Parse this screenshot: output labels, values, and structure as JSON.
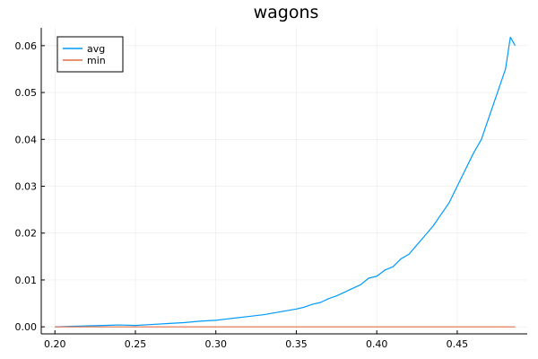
{
  "chart_data": {
    "type": "line",
    "title": "wagons",
    "xlabel": "",
    "ylabel": "",
    "xlim": [
      0.1915,
      0.4935
    ],
    "ylim": [
      -0.0015,
      0.0638
    ],
    "xticks": [
      0.2,
      0.25,
      0.3,
      0.35,
      0.4,
      0.45
    ],
    "xtick_labels": [
      "0.20",
      "0.25",
      "0.30",
      "0.35",
      "0.40",
      "0.45"
    ],
    "yticks": [
      0.0,
      0.01,
      0.02,
      0.03,
      0.04,
      0.05,
      0.06
    ],
    "ytick_labels": [
      "0.00",
      "0.01",
      "0.02",
      "0.03",
      "0.04",
      "0.05",
      "0.06"
    ],
    "grid": true,
    "legend_position": "top-left",
    "series": [
      {
        "name": "avg",
        "color": "#009AFA",
        "x": [
          0.2,
          0.21,
          0.22,
          0.23,
          0.24,
          0.25,
          0.26,
          0.27,
          0.28,
          0.29,
          0.3,
          0.31,
          0.32,
          0.33,
          0.34,
          0.35,
          0.355,
          0.36,
          0.365,
          0.37,
          0.375,
          0.38,
          0.385,
          0.39,
          0.395,
          0.4,
          0.405,
          0.41,
          0.415,
          0.42,
          0.425,
          0.43,
          0.435,
          0.44,
          0.445,
          0.45,
          0.455,
          0.46,
          0.465,
          0.47,
          0.475,
          0.48,
          0.483,
          0.486
        ],
        "y": [
          0.0,
          0.0001,
          0.0002,
          0.0003,
          0.0004,
          0.0003,
          0.0005,
          0.0007,
          0.0009,
          0.0012,
          0.0014,
          0.0018,
          0.0022,
          0.0026,
          0.0032,
          0.0038,
          0.0042,
          0.0048,
          0.0052,
          0.006,
          0.0066,
          0.0074,
          0.0082,
          0.009,
          0.0104,
          0.0108,
          0.0121,
          0.0128,
          0.0145,
          0.0155,
          0.0175,
          0.0195,
          0.0215,
          0.024,
          0.0265,
          0.03,
          0.0335,
          0.037,
          0.04,
          0.045,
          0.05,
          0.055,
          0.0618,
          0.06
        ]
      },
      {
        "name": "min",
        "color": "#E26F46",
        "x": [
          0.2,
          0.486
        ],
        "y": [
          0.0,
          0.0
        ]
      }
    ]
  }
}
